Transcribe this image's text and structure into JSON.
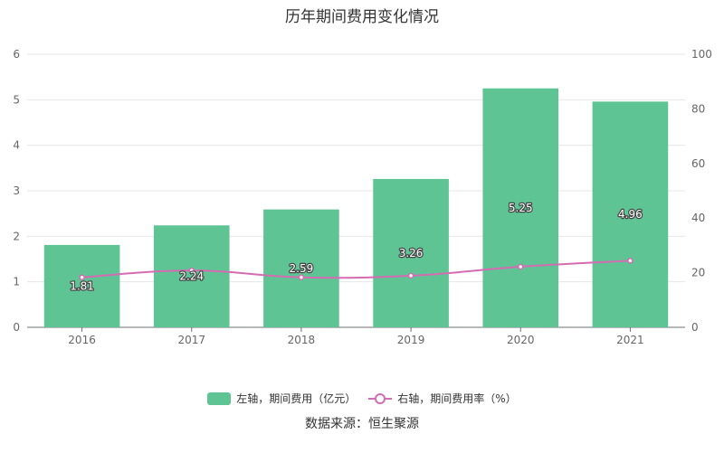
{
  "chart_data": {
    "type": "bar",
    "title": "历年期间费用变化情况",
    "categories": [
      "2016",
      "2017",
      "2018",
      "2019",
      "2020",
      "2021"
    ],
    "series": [
      {
        "name": "左轴，期间费用（亿元）",
        "chart_type": "bar",
        "axis": "left",
        "color": "#5fc494",
        "values": [
          1.81,
          2.24,
          2.59,
          3.26,
          5.25,
          4.96
        ],
        "data_labels": [
          "1.81",
          "2.24",
          "2.59",
          "3.26",
          "5.25",
          "4.96"
        ]
      },
      {
        "name": "右轴，期间费用率（%）",
        "chart_type": "line",
        "axis": "right",
        "color": "#d46bb3",
        "values": [
          18.3,
          20.8,
          18.3,
          18.9,
          22.2,
          24.4
        ]
      }
    ],
    "y_left": {
      "min": 0,
      "max": 6,
      "ticks": [
        "0",
        "1",
        "2",
        "3",
        "4",
        "5",
        "6"
      ]
    },
    "y_right": {
      "min": 0,
      "max": 100,
      "ticks": [
        "0",
        "20",
        "40",
        "60",
        "80",
        "100"
      ]
    },
    "grid": true,
    "legend_position": "bottom"
  },
  "legend": {
    "bar_label": "左轴，期间费用（亿元）",
    "line_label": "右轴，期间费用率（%）"
  },
  "source": "数据来源：恒生聚源"
}
